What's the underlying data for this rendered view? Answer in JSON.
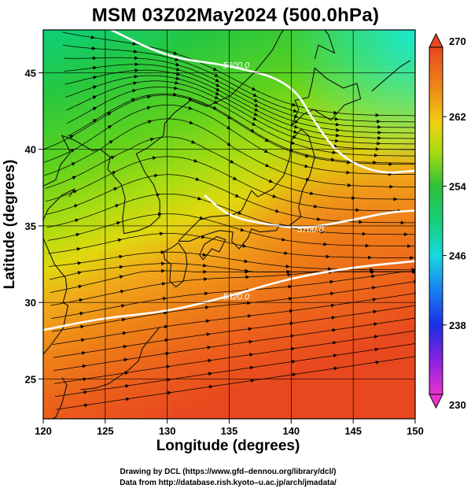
{
  "title": "MSM 03Z02May2024 (500.0hPa)",
  "x_axis": {
    "label": "Longitude (degrees)",
    "ticks": [
      120,
      125,
      130,
      135,
      140,
      145,
      150
    ]
  },
  "y_axis": {
    "label": "Latitude (degrees)",
    "ticks": [
      25,
      30,
      35,
      40,
      45
    ]
  },
  "colorbar": {
    "ticks": [
      230,
      238,
      246,
      254,
      262,
      270
    ],
    "min": 230,
    "max": 270
  },
  "contours": [
    {
      "value": 5820,
      "label": "5820.0",
      "lat_at": [
        [
          120,
          28.2
        ],
        [
          125,
          29.0
        ],
        [
          130,
          29.4
        ],
        [
          135,
          30.4
        ],
        [
          140,
          31.6
        ],
        [
          145,
          32.3
        ],
        [
          150,
          32.7
        ]
      ]
    },
    {
      "value": 5700,
      "label": "5700.0",
      "lat_at": [
        [
          133,
          37.0
        ],
        [
          135,
          35.6
        ],
        [
          138,
          35.1
        ],
        [
          141,
          34.8
        ],
        [
          145,
          35.4
        ],
        [
          148,
          35.9
        ],
        [
          150,
          36.0
        ]
      ]
    },
    {
      "value": 5600,
      "label": "5600.0",
      "lat_at": [
        [
          125,
          48
        ],
        [
          130,
          46.0
        ],
        [
          135,
          45.5
        ],
        [
          140,
          44.4
        ],
        [
          142,
          41.6
        ],
        [
          144,
          39.5
        ],
        [
          147,
          38.4
        ],
        [
          150,
          38.6
        ]
      ]
    }
  ],
  "credits": {
    "line1": "Drawing by DCL (https://www.gfd–dennou.org/library/dcl/)",
    "line2": "Data from http://database.rish.kyoto–u.ac.jp/arch/jmadata/"
  },
  "colors": {
    "cold": "#00e6e6",
    "mid": "#22c84a",
    "warm": "#e86a1a",
    "hot": "#e8481e"
  }
}
